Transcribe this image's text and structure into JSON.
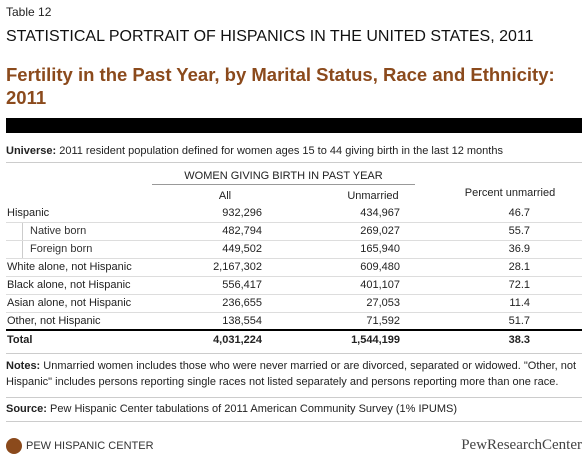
{
  "table_label": "Table 12",
  "header": {
    "title": "STATISTICAL PORTRAIT OF HISPANICS IN THE UNITED STATES, 2011",
    "subtitle": "Fertility in the Past Year, by Marital Status, Race and Ethnicity: 2011"
  },
  "universe": {
    "label": "Universe:",
    "text": "2011 resident population defined for women ages 15 to 44 giving birth in the last 12 months"
  },
  "table": {
    "group_header": "WOMEN GIVING BIRTH IN PAST YEAR",
    "columns": [
      "All",
      "Unmarried",
      "Percent unmarried"
    ],
    "rows": [
      [
        "Hispanic",
        "932,296",
        "434,967",
        "46.7"
      ],
      [
        "Native born",
        "482,794",
        "269,027",
        "55.7"
      ],
      [
        "Foreign born",
        "449,502",
        "165,940",
        "36.9"
      ],
      [
        "White alone, not Hispanic",
        "2,167,302",
        "609,480",
        "28.1"
      ],
      [
        "Black alone, not Hispanic",
        "556,417",
        "401,107",
        "72.1"
      ],
      [
        "Asian alone, not Hispanic",
        "236,655",
        "27,053",
        "11.4"
      ],
      [
        "Other, not Hispanic",
        "138,554",
        "71,592",
        "51.7"
      ],
      [
        "Total",
        "4,031,224",
        "1,544,199",
        "38.3"
      ]
    ]
  },
  "notes": {
    "label": "Notes:",
    "text": "Unmarried women includes those who were never married or are divorced, separated or widowed. \"Other, not Hispanic\" includes persons reporting single races not listed separately and persons reporting more than one race."
  },
  "source": {
    "label": "Source:",
    "text": "Pew Hispanic Center tabulations of 2011 American Community Survey (1% IPUMS)"
  },
  "footer": {
    "left": "PEW HISPANIC CENTER",
    "right": "PewResearchCenter"
  }
}
